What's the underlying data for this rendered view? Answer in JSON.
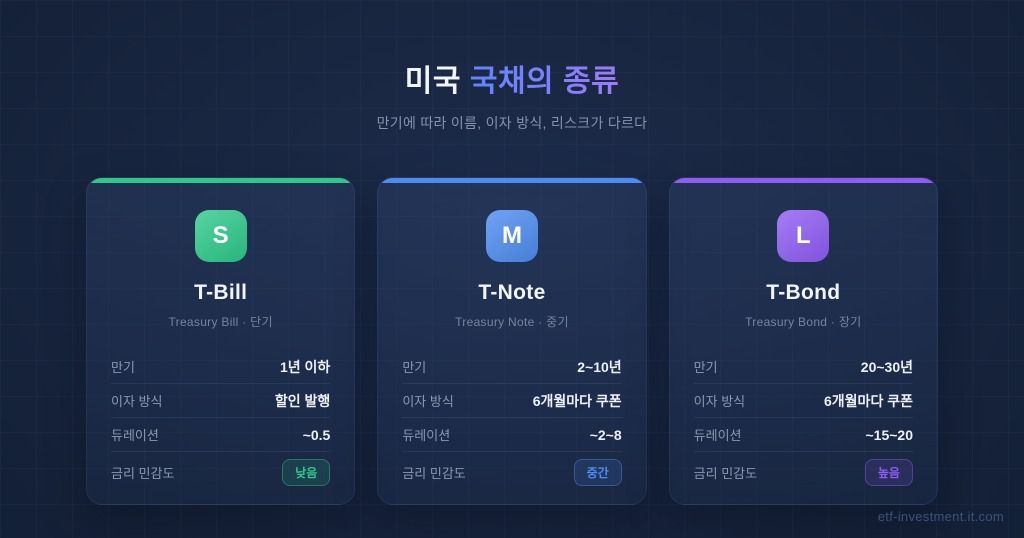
{
  "header": {
    "title_white": "미국",
    "title_gradient": "국채의 종류",
    "subtitle": "만기에 따라 이름, 이자 방식, 리스크가 다르다"
  },
  "row_labels": {
    "maturity": "만기",
    "interest": "이자 방식",
    "duration": "듀레이션",
    "sensitivity": "금리 민감도"
  },
  "cards": [
    {
      "icon_letter": "S",
      "accent": "#2ec98a",
      "name": "T-Bill",
      "subtitle": "Treasury Bill · 단기",
      "maturity": "1년 이하",
      "interest": "할인 발행",
      "duration": "~0.5",
      "sensitivity": "낮음"
    },
    {
      "icon_letter": "M",
      "accent": "#4d8cf0",
      "name": "T-Note",
      "subtitle": "Treasury Note · 중기",
      "maturity": "2~10년",
      "interest": "6개월마다 쿠폰",
      "duration": "~2~8",
      "sensitivity": "중간"
    },
    {
      "icon_letter": "L",
      "accent": "#8f5cf5",
      "name": "T-Bond",
      "subtitle": "Treasury Bond · 장기",
      "maturity": "20~30년",
      "interest": "6개월마다 쿠폰",
      "duration": "~15~20",
      "sensitivity": "높음"
    }
  ],
  "footer": {
    "watermark": "etf-investment.it.com"
  },
  "colors": {
    "background": "#152138",
    "card_accent_green": "#2ec98a",
    "card_accent_blue": "#4d8cf0",
    "card_accent_purple": "#8f5cf5",
    "title_gradient_start": "#5f85fa",
    "title_gradient_end": "#9d7bf5"
  }
}
